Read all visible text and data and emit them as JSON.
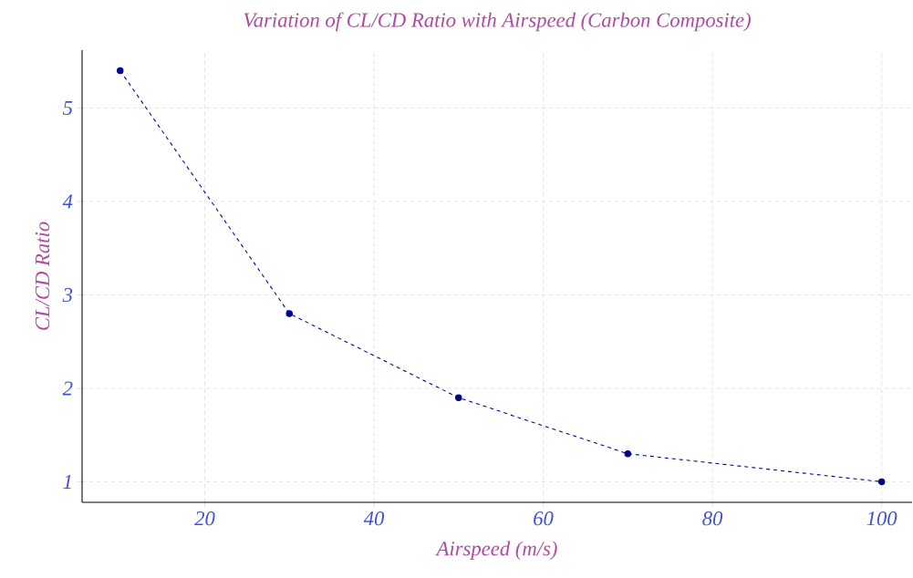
{
  "chart_data": {
    "type": "line",
    "title": "Variation of CL/CD Ratio with Airspeed (Carbon Composite)",
    "xlabel": "Airspeed (m/s)",
    "ylabel": "CL/CD Ratio",
    "x": [
      10,
      30,
      50,
      70,
      100
    ],
    "values": [
      5.4,
      2.8,
      1.9,
      1.3,
      1.0
    ],
    "color": "#00008b",
    "xlim": [
      5.5,
      103.6
    ],
    "ylim": [
      0.78,
      5.62
    ],
    "xticks": [
      20,
      40,
      60,
      80,
      100
    ],
    "yticks": [
      1,
      2,
      3,
      4,
      5
    ],
    "grid": true,
    "marker": "circle",
    "line_style": "dashed"
  }
}
